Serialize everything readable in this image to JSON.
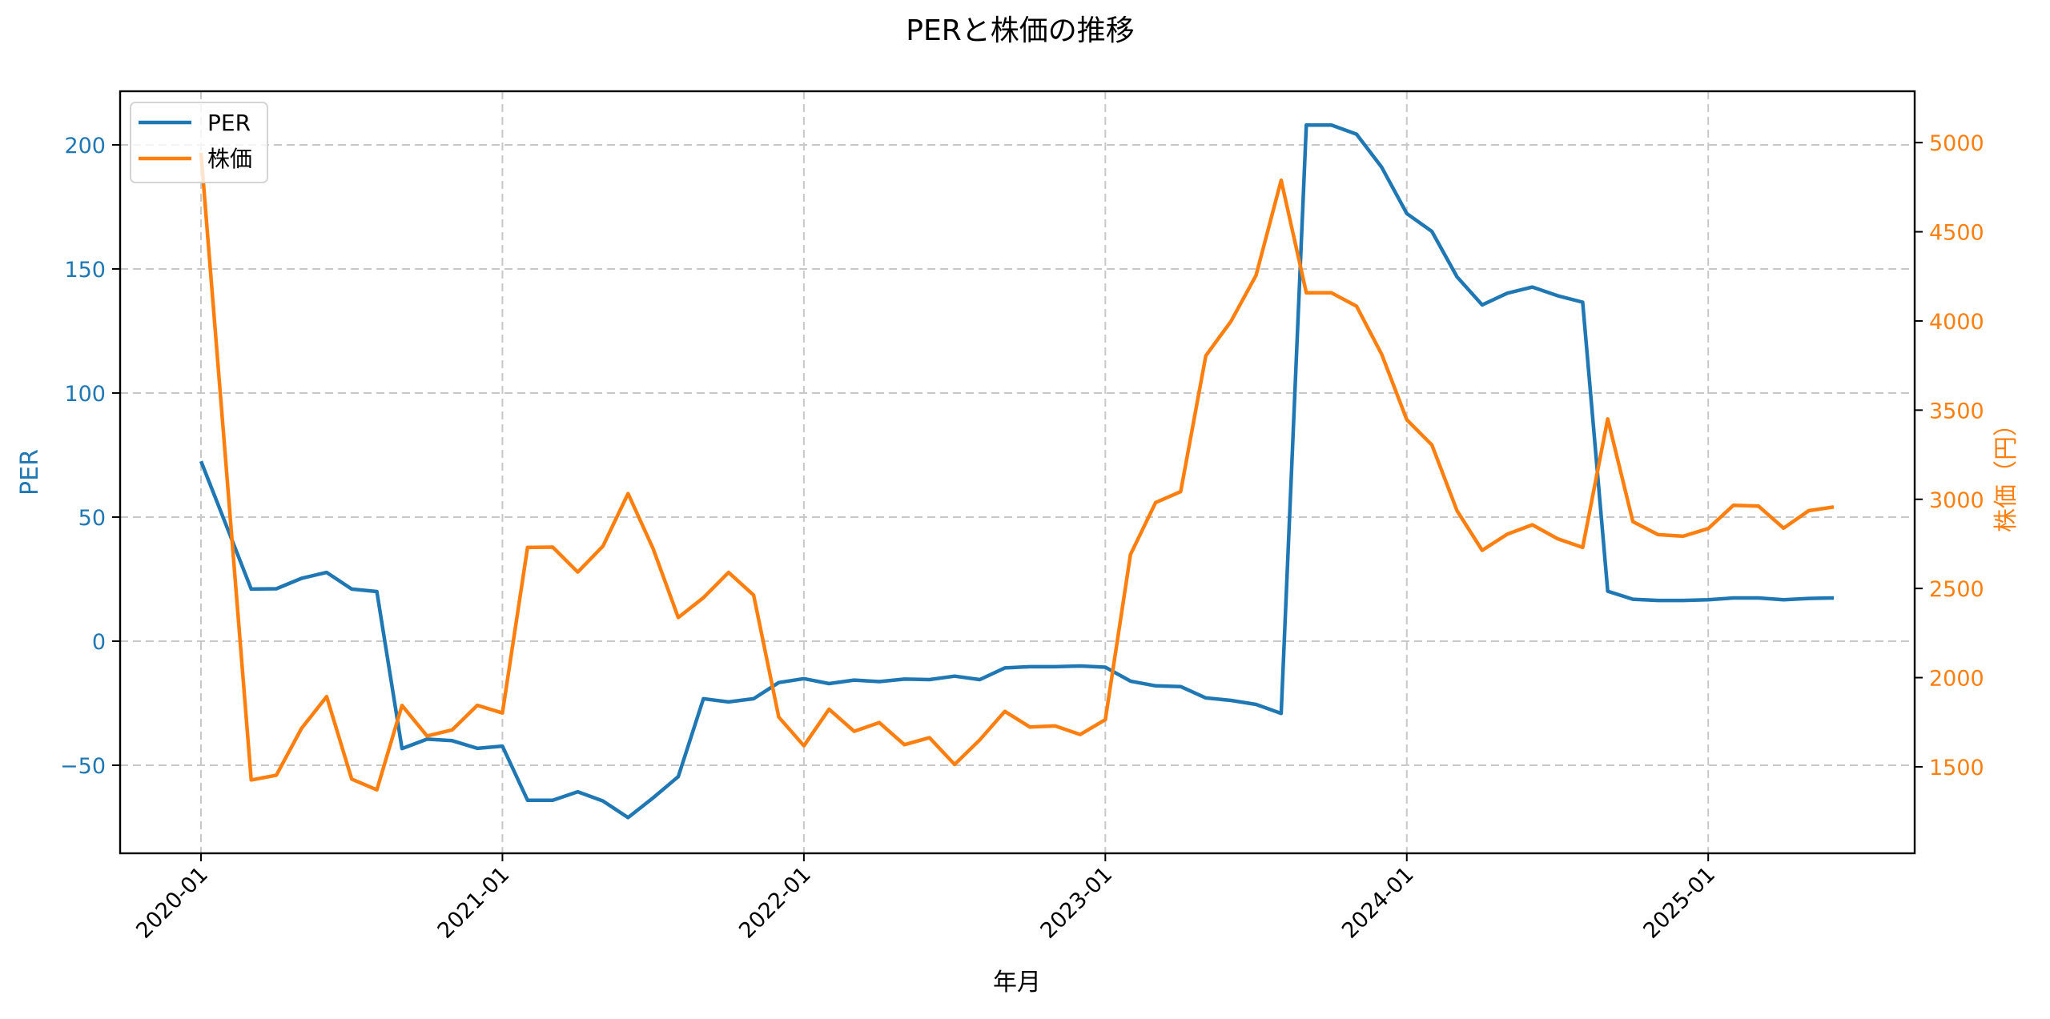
{
  "chart_data": {
    "type": "line",
    "title": "PERと株価の推移",
    "xlabel": "年月",
    "ylabel": "PER",
    "ylabel_right": "株価（円）",
    "ylim": [
      -85.5,
      221.6
    ],
    "ylim_right": [
      1015,
      5288
    ],
    "yticks": [
      -50,
      0,
      50,
      100,
      150,
      200
    ],
    "yticks_right": [
      1500,
      2000,
      2500,
      3000,
      3500,
      4000,
      4500,
      5000
    ],
    "xticks": [
      "2020-01",
      "2021-01",
      "2022-01",
      "2023-01",
      "2024-01",
      "2025-01"
    ],
    "grid": true,
    "legend_position": "upper left",
    "x": [
      "2020-01",
      "2020-02",
      "2020-03",
      "2020-04",
      "2020-05",
      "2020-06",
      "2020-07",
      "2020-08",
      "2020-09",
      "2020-10",
      "2020-11",
      "2020-12",
      "2021-01",
      "2021-02",
      "2021-03",
      "2021-04",
      "2021-05",
      "2021-06",
      "2021-07",
      "2021-08",
      "2021-09",
      "2021-10",
      "2021-11",
      "2021-12",
      "2022-01",
      "2022-02",
      "2022-03",
      "2022-04",
      "2022-05",
      "2022-06",
      "2022-07",
      "2022-08",
      "2022-09",
      "2022-10",
      "2022-11",
      "2022-12",
      "2023-01",
      "2023-02",
      "2023-03",
      "2023-04",
      "2023-05",
      "2023-06",
      "2023-07",
      "2023-08",
      "2023-09",
      "2023-10",
      "2023-11",
      "2023-12",
      "2024-01",
      "2024-02",
      "2024-03",
      "2024-04",
      "2024-05",
      "2024-06",
      "2024-07",
      "2024-08",
      "2024-09",
      "2024-10",
      "2024-11",
      "2024-12",
      "2025-01",
      "2025-02",
      "2025-03",
      "2025-04",
      "2025-05",
      "2025-06"
    ],
    "series": [
      {
        "name": "PER",
        "axis": "left",
        "color": "#1f77b4",
        "values": [
          72.5,
          46.8,
          21.0,
          21.1,
          25.3,
          27.7,
          21.0,
          20.0,
          -43.3,
          -39.5,
          -40.1,
          -43.2,
          -42.3,
          -64.1,
          -64.1,
          -60.7,
          -64.4,
          -71.1,
          -63.1,
          -54.6,
          -23.2,
          -24.5,
          -23.2,
          -16.7,
          -15.1,
          -17.1,
          -15.7,
          -16.3,
          -15.3,
          -15.5,
          -14.1,
          -15.5,
          -10.8,
          -10.3,
          -10.3,
          -10.0,
          -10.5,
          -16.1,
          -18.0,
          -18.3,
          -22.9,
          -23.9,
          -25.5,
          -29.1,
          208.0,
          208.0,
          204.3,
          191.0,
          172.3,
          165.1,
          146.8,
          135.5,
          140.2,
          142.7,
          139.2,
          136.6,
          20.1,
          16.9,
          16.4,
          16.4,
          16.7,
          17.4,
          17.4,
          16.7,
          17.2,
          17.4
        ]
      },
      {
        "name": "株価",
        "axis": "right",
        "color": "#ff7f0e",
        "values": [
          4943,
          3185,
          1426,
          1453,
          1715,
          1894,
          1431,
          1371,
          1844,
          1673,
          1707,
          1845,
          1802,
          2730,
          2732,
          2592,
          2737,
          3032,
          2722,
          2337,
          2448,
          2590,
          2463,
          1779,
          1618,
          1823,
          1699,
          1748,
          1624,
          1663,
          1513,
          1651,
          1811,
          1723,
          1729,
          1681,
          1764,
          2690,
          2982,
          3043,
          3805,
          3998,
          4255,
          4789,
          4158,
          4158,
          4083,
          3813,
          3446,
          3305,
          2936,
          2714,
          2804,
          2857,
          2779,
          2730,
          3451,
          2875,
          2802,
          2793,
          2836,
          2966,
          2962,
          2838,
          2936,
          2957
        ]
      }
    ]
  },
  "legend": {
    "items": [
      {
        "label": "PER",
        "color": "#1f77b4"
      },
      {
        "label": "株価",
        "color": "#ff7f0e"
      }
    ]
  },
  "colors": {
    "per": "#1f77b4",
    "price": "#ff7f0e",
    "grid": "#c8c8c8",
    "axis": "#000000"
  }
}
